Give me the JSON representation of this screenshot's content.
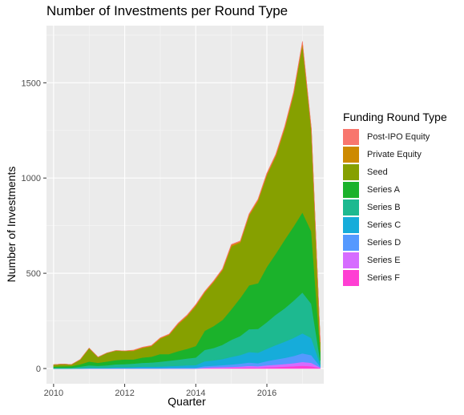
{
  "chart_data": {
    "type": "area",
    "stacked": true,
    "title": "Number of Investments per Round Type",
    "xlabel": "Quarter",
    "ylabel": "Number of Investments",
    "xlim": [
      2009.8,
      2017.6
    ],
    "ylim": [
      -80,
      1800
    ],
    "x_ticks": [
      2010,
      2012,
      2014,
      2016
    ],
    "y_ticks": [
      0,
      500,
      1000,
      1500
    ],
    "grid": true,
    "legend_title": "Funding Round Type",
    "legend_position": "right",
    "x": [
      2010.0,
      2010.25,
      2010.5,
      2010.75,
      2011.0,
      2011.25,
      2011.5,
      2011.75,
      2012.0,
      2012.25,
      2012.5,
      2012.75,
      2013.0,
      2013.25,
      2013.5,
      2013.75,
      2014.0,
      2014.25,
      2014.5,
      2014.75,
      2015.0,
      2015.25,
      2015.5,
      2015.75,
      2016.0,
      2016.25,
      2016.5,
      2016.75,
      2017.0,
      2017.25,
      2017.5
    ],
    "series": [
      {
        "name": "Series F",
        "color": "#FF3FD3",
        "values": [
          0,
          0,
          0,
          0,
          0,
          0,
          0,
          0,
          0,
          0,
          0,
          0,
          0,
          0,
          0,
          0,
          0,
          2,
          3,
          3,
          4,
          5,
          6,
          5,
          7,
          8,
          10,
          12,
          15,
          12,
          3
        ]
      },
      {
        "name": "Series E",
        "color": "#D66CFF",
        "values": [
          0,
          0,
          0,
          0,
          0,
          0,
          0,
          0,
          0,
          0,
          0,
          0,
          0,
          0,
          0,
          0,
          0,
          3,
          4,
          5,
          5,
          6,
          8,
          7,
          10,
          12,
          14,
          16,
          20,
          18,
          3
        ]
      },
      {
        "name": "Series D",
        "color": "#5599FF",
        "values": [
          0,
          0,
          0,
          0,
          1,
          1,
          1,
          2,
          2,
          2,
          3,
          3,
          3,
          4,
          4,
          5,
          5,
          8,
          8,
          10,
          12,
          15,
          18,
          16,
          22,
          28,
          32,
          38,
          45,
          40,
          5
        ]
      },
      {
        "name": "Series C",
        "color": "#16ACDA",
        "values": [
          0,
          0,
          0,
          2,
          4,
          3,
          4,
          5,
          5,
          6,
          7,
          7,
          8,
          9,
          10,
          12,
          13,
          25,
          28,
          32,
          40,
          45,
          55,
          55,
          65,
          75,
          85,
          95,
          105,
          90,
          12
        ]
      },
      {
        "name": "Series B",
        "color": "#1DB990",
        "values": [
          4,
          5,
          5,
          8,
          12,
          10,
          12,
          15,
          16,
          18,
          20,
          22,
          25,
          28,
          32,
          36,
          40,
          60,
          65,
          75,
          90,
          100,
          120,
          125,
          140,
          160,
          175,
          195,
          215,
          180,
          20
        ]
      },
      {
        "name": "Series A",
        "color": "#1BB22B",
        "values": [
          6,
          7,
          8,
          12,
          20,
          16,
          20,
          22,
          25,
          22,
          28,
          30,
          40,
          35,
          45,
          50,
          60,
          100,
          115,
          130,
          160,
          200,
          230,
          240,
          290,
          320,
          360,
          390,
          420,
          380,
          45
        ]
      },
      {
        "name": "Seed",
        "color": "#86A000",
        "values": [
          10,
          12,
          8,
          25,
          70,
          30,
          45,
          50,
          45,
          45,
          50,
          55,
          80,
          100,
          140,
          170,
          210,
          200,
          230,
          260,
          330,
          290,
          365,
          430,
          480,
          510,
          580,
          690,
          880,
          530,
          50
        ]
      },
      {
        "name": "Private Equity",
        "color": "#CD8A00",
        "values": [
          0,
          0,
          0,
          0,
          0,
          0,
          0,
          0,
          0,
          3,
          3,
          3,
          4,
          4,
          5,
          5,
          6,
          5,
          5,
          6,
          8,
          6,
          7,
          8,
          8,
          8,
          10,
          10,
          12,
          8,
          2
        ]
      },
      {
        "name": "Post-IPO Equity",
        "color": "#F8766D",
        "values": [
          0,
          0,
          0,
          0,
          0,
          0,
          0,
          0,
          0,
          1,
          1,
          1,
          1,
          1,
          2,
          2,
          2,
          2,
          2,
          3,
          3,
          3,
          3,
          3,
          4,
          4,
          5,
          5,
          5,
          4,
          1
        ]
      }
    ]
  }
}
